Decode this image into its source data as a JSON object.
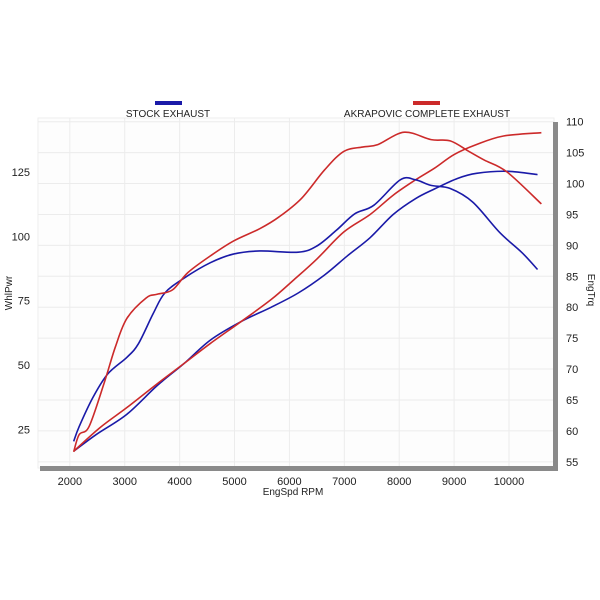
{
  "chart_data": {
    "type": "line",
    "legend": [
      {
        "name": "STOCK EXHAUST",
        "color": "#1a1aa8"
      },
      {
        "name": "AKRAPOVIC COMPLETE EXHAUST",
        "color": "#cc2a2a"
      }
    ],
    "legend_placement": "top",
    "xlabel": "EngSpd  RPM",
    "ylabel_left": "WhlPwr",
    "ylabel_right": "EngTrq",
    "xlim": [
      1420,
      10820
    ],
    "ylim_left": [
      10,
      146
    ],
    "ylim_right": [
      54,
      110.6
    ],
    "x_ticks": [
      2000,
      3000,
      4000,
      5000,
      6000,
      7000,
      8000,
      9000,
      10000
    ],
    "y_ticks_left": [
      25,
      50,
      75,
      100,
      125
    ],
    "y_ticks_right": [
      55,
      60,
      65,
      70,
      75,
      80,
      85,
      90,
      95,
      100,
      105,
      110
    ],
    "grid": true,
    "series": [
      {
        "name": "Stock WhlPwr",
        "axis": "left",
        "color": "#1a1aa8",
        "x": [
          2070,
          2480,
          3040,
          3590,
          4080,
          4560,
          5120,
          5670,
          6160,
          6640,
          7060,
          7470,
          7890,
          8300,
          8650,
          9060,
          9410,
          9960,
          10520
        ],
        "y": [
          16.5,
          23,
          30.9,
          42,
          50.6,
          59.7,
          66.9,
          72.5,
          78,
          85,
          92.5,
          99.5,
          108.5,
          114.7,
          118.5,
          122.5,
          124.5,
          125.3,
          124
        ]
      },
      {
        "name": "Akrapovic WhlPwr",
        "axis": "left",
        "color": "#cc2a2a",
        "x": [
          2070,
          2550,
          3040,
          3590,
          4080,
          4560,
          5120,
          5670,
          6090,
          6500,
          6990,
          7470,
          7890,
          8300,
          8650,
          9000,
          9410,
          9900,
          10590
        ],
        "y": [
          16.5,
          25.7,
          33.5,
          42.7,
          50.6,
          58.4,
          66.9,
          75.5,
          83.3,
          91.2,
          101.7,
          108.5,
          116,
          122,
          126.6,
          131.8,
          135.7,
          139,
          140.3
        ]
      },
      {
        "name": "Stock EngTrq",
        "axis": "right",
        "color": "#1a1aa8",
        "x": [
          2070,
          2170,
          2420,
          2690,
          3040,
          3250,
          3520,
          3730,
          4080,
          4560,
          4980,
          5460,
          6160,
          6500,
          6850,
          7190,
          7540,
          8020,
          8300,
          8580,
          8930,
          9340,
          9830,
          10240,
          10520
        ],
        "y": [
          58.3,
          60.7,
          65.4,
          69.2,
          71.9,
          74.1,
          79,
          82.3,
          84.7,
          87.2,
          88.6,
          89.1,
          88.9,
          89.9,
          92.4,
          95.1,
          96.5,
          100.6,
          100.6,
          99.7,
          99.2,
          97,
          92.1,
          88.8,
          86.1
        ]
      },
      {
        "name": "Akrapovic EngTrq",
        "axis": "right",
        "color": "#cc2a2a",
        "x": [
          2070,
          2170,
          2350,
          2620,
          2830,
          3040,
          3390,
          3590,
          3870,
          4150,
          4560,
          4980,
          5460,
          5810,
          6220,
          6640,
          6990,
          7330,
          7610,
          8090,
          8580,
          8930,
          9270,
          9550,
          9960,
          10590
        ],
        "y": [
          56.6,
          59.4,
          60.7,
          67.6,
          73.6,
          78.2,
          81.5,
          82.1,
          82.8,
          85.6,
          88.3,
          90.7,
          92.7,
          94.6,
          97.6,
          102.2,
          105.2,
          105.9,
          106.3,
          108.3,
          107.1,
          106.9,
          105.2,
          103.8,
          101.9,
          96.7
        ]
      }
    ]
  }
}
